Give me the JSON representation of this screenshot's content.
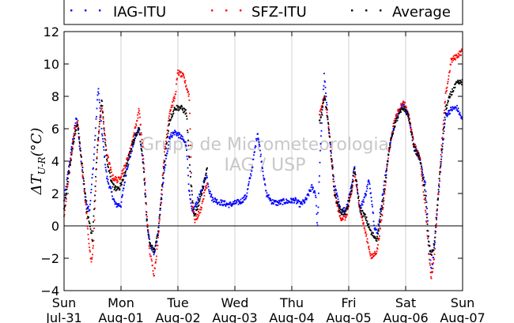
{
  "chart_data": {
    "type": "scatter",
    "title": "",
    "xlabel": "",
    "ylabel": "ΔT_{U-R}(°C)",
    "ylim": [
      -4,
      12
    ],
    "xlim": [
      0,
      7
    ],
    "yticks": [
      -4,
      -2,
      0,
      2,
      4,
      6,
      8,
      10,
      12
    ],
    "x_tick_positions": [
      0,
      1,
      2,
      3,
      4,
      5,
      6,
      7
    ],
    "x_tick_labels": [
      [
        "Sun",
        "Jul-31"
      ],
      [
        "Mon",
        "Aug-01"
      ],
      [
        "Tue",
        "Aug-02"
      ],
      [
        "Wed",
        "Aug-03"
      ],
      [
        "Thu",
        "Aug-04"
      ],
      [
        "Fri",
        "Aug-05"
      ],
      [
        "Sat",
        "Aug-06"
      ],
      [
        "Sun",
        "Aug-07"
      ]
    ],
    "grid": "vertical",
    "zero_line": true,
    "legend_placement": "top",
    "watermark": [
      "Grupo de Micrometeorologia",
      "IAG / USP"
    ],
    "series": [
      {
        "name": "IAG-ITU",
        "color": "#0000ff",
        "gaps": [],
        "keypoints": [
          [
            0.0,
            1.5
          ],
          [
            0.08,
            3.5
          ],
          [
            0.15,
            5.2
          ],
          [
            0.22,
            6.8
          ],
          [
            0.3,
            4.0
          ],
          [
            0.38,
            1.5
          ],
          [
            0.45,
            1.0
          ],
          [
            0.52,
            4.0
          ],
          [
            0.6,
            8.6
          ],
          [
            0.66,
            6.0
          ],
          [
            0.75,
            3.0
          ],
          [
            0.9,
            1.3
          ],
          [
            1.0,
            1.3
          ],
          [
            1.1,
            3.5
          ],
          [
            1.25,
            5.5
          ],
          [
            1.32,
            6.0
          ],
          [
            1.4,
            3.5
          ],
          [
            1.45,
            0.5
          ],
          [
            1.5,
            -1.0
          ],
          [
            1.58,
            -1.8
          ],
          [
            1.65,
            -0.5
          ],
          [
            1.75,
            3.0
          ],
          [
            1.85,
            5.5
          ],
          [
            1.95,
            5.8
          ],
          [
            2.05,
            5.5
          ],
          [
            2.15,
            5.0
          ],
          [
            2.2,
            2.0
          ],
          [
            2.25,
            0.8
          ],
          [
            2.3,
            1.2
          ],
          [
            2.4,
            2.0
          ],
          [
            2.5,
            3.2
          ],
          [
            2.55,
            2.2
          ],
          [
            2.6,
            1.7
          ],
          [
            2.7,
            1.5
          ],
          [
            2.8,
            1.4
          ],
          [
            2.9,
            1.3
          ],
          [
            3.0,
            1.4
          ],
          [
            3.1,
            1.5
          ],
          [
            3.2,
            1.8
          ],
          [
            3.3,
            3.5
          ],
          [
            3.4,
            5.8
          ],
          [
            3.45,
            4.5
          ],
          [
            3.55,
            2.0
          ],
          [
            3.65,
            1.5
          ],
          [
            3.75,
            1.4
          ],
          [
            3.85,
            1.5
          ],
          [
            3.95,
            1.5
          ],
          [
            4.05,
            1.6
          ],
          [
            4.15,
            1.3
          ],
          [
            4.25,
            1.6
          ],
          [
            4.35,
            2.4
          ],
          [
            4.42,
            2.0
          ],
          [
            4.45,
            -0.1
          ],
          [
            4.5,
            4.5
          ],
          [
            4.57,
            9.3
          ],
          [
            4.65,
            6.0
          ],
          [
            4.75,
            2.5
          ],
          [
            4.85,
            1.0
          ],
          [
            4.95,
            1.0
          ],
          [
            5.05,
            2.5
          ],
          [
            5.1,
            3.6
          ],
          [
            5.2,
            1.0
          ],
          [
            5.3,
            2.0
          ],
          [
            5.35,
            2.8
          ],
          [
            5.4,
            1.8
          ],
          [
            5.45,
            0.0
          ],
          [
            5.5,
            -0.5
          ],
          [
            5.6,
            2.0
          ],
          [
            5.7,
            4.5
          ],
          [
            5.75,
            5.5
          ],
          [
            5.85,
            6.8
          ],
          [
            5.95,
            7.5
          ],
          [
            6.05,
            6.8
          ],
          [
            6.15,
            5.0
          ],
          [
            6.25,
            4.0
          ],
          [
            6.35,
            2.5
          ],
          [
            6.4,
            -0.5
          ],
          [
            6.45,
            -2.8
          ],
          [
            6.5,
            -1.5
          ],
          [
            6.6,
            3.0
          ],
          [
            6.7,
            6.8
          ],
          [
            6.8,
            7.2
          ],
          [
            6.9,
            7.3
          ],
          [
            7.0,
            6.5
          ]
        ]
      },
      {
        "name": "SFZ-ITU",
        "color": "#ff0000",
        "gaps": [
          [
            2.52,
            4.48
          ]
        ],
        "keypoints": [
          [
            0.0,
            0.5
          ],
          [
            0.08,
            3.0
          ],
          [
            0.18,
            5.8
          ],
          [
            0.24,
            6.5
          ],
          [
            0.32,
            3.5
          ],
          [
            0.4,
            0.5
          ],
          [
            0.45,
            -1.5
          ],
          [
            0.48,
            -2.4
          ],
          [
            0.52,
            -1.0
          ],
          [
            0.58,
            4.5
          ],
          [
            0.66,
            7.5
          ],
          [
            0.75,
            4.5
          ],
          [
            0.85,
            3.0
          ],
          [
            0.95,
            2.8
          ],
          [
            1.05,
            3.5
          ],
          [
            1.15,
            4.5
          ],
          [
            1.25,
            6.0
          ],
          [
            1.32,
            7.2
          ],
          [
            1.4,
            4.0
          ],
          [
            1.45,
            1.0
          ],
          [
            1.5,
            -1.5
          ],
          [
            1.58,
            -3.0
          ],
          [
            1.65,
            -1.0
          ],
          [
            1.75,
            4.0
          ],
          [
            1.85,
            7.0
          ],
          [
            1.95,
            8.0
          ],
          [
            2.0,
            9.5
          ],
          [
            2.1,
            9.2
          ],
          [
            2.2,
            8.0
          ],
          [
            2.25,
            1.5
          ],
          [
            2.3,
            0.3
          ],
          [
            2.4,
            1.0
          ],
          [
            2.5,
            2.5
          ],
          [
            4.5,
            7.0
          ],
          [
            4.58,
            8.0
          ],
          [
            4.65,
            6.0
          ],
          [
            4.75,
            2.0
          ],
          [
            4.85,
            0.5
          ],
          [
            4.95,
            0.5
          ],
          [
            5.05,
            2.0
          ],
          [
            5.1,
            3.3
          ],
          [
            5.2,
            1.0
          ],
          [
            5.3,
            -0.5
          ],
          [
            5.4,
            -2.0
          ],
          [
            5.5,
            -1.5
          ],
          [
            5.6,
            1.0
          ],
          [
            5.7,
            4.5
          ],
          [
            5.8,
            6.5
          ],
          [
            5.9,
            7.3
          ],
          [
            5.97,
            7.6
          ],
          [
            6.05,
            6.8
          ],
          [
            6.15,
            5.0
          ],
          [
            6.25,
            4.2
          ],
          [
            6.35,
            1.0
          ],
          [
            6.4,
            -1.5
          ],
          [
            6.45,
            -3.2
          ],
          [
            6.5,
            -2.0
          ],
          [
            6.6,
            3.5
          ],
          [
            6.7,
            8.0
          ],
          [
            6.8,
            10.2
          ],
          [
            6.9,
            10.5
          ],
          [
            7.0,
            10.8
          ]
        ]
      },
      {
        "name": "Average",
        "color": "#000000",
        "gaps": [
          [
            2.52,
            4.48
          ]
        ],
        "keypoints": [
          [
            0.0,
            1.0
          ],
          [
            0.08,
            3.2
          ],
          [
            0.18,
            5.5
          ],
          [
            0.24,
            6.3
          ],
          [
            0.32,
            3.8
          ],
          [
            0.4,
            1.0
          ],
          [
            0.45,
            0.0
          ],
          [
            0.5,
            -0.8
          ],
          [
            0.58,
            4.5
          ],
          [
            0.66,
            7.9
          ],
          [
            0.75,
            4.0
          ],
          [
            0.85,
            2.5
          ],
          [
            0.95,
            2.2
          ],
          [
            1.05,
            3.0
          ],
          [
            1.15,
            4.5
          ],
          [
            1.25,
            5.5
          ],
          [
            1.32,
            6.0
          ],
          [
            1.4,
            3.5
          ],
          [
            1.45,
            0.5
          ],
          [
            1.5,
            -1.0
          ],
          [
            1.58,
            -1.6
          ],
          [
            1.65,
            -0.5
          ],
          [
            1.75,
            3.5
          ],
          [
            1.85,
            6.5
          ],
          [
            1.95,
            7.3
          ],
          [
            2.05,
            7.3
          ],
          [
            2.15,
            7.0
          ],
          [
            2.22,
            3.0
          ],
          [
            2.28,
            0.6
          ],
          [
            2.35,
            1.2
          ],
          [
            2.45,
            2.5
          ],
          [
            2.5,
            3.4
          ],
          [
            4.5,
            6.5
          ],
          [
            4.58,
            8.0
          ],
          [
            4.65,
            6.0
          ],
          [
            4.75,
            2.0
          ],
          [
            4.85,
            0.9
          ],
          [
            4.95,
            0.8
          ],
          [
            5.05,
            2.2
          ],
          [
            5.1,
            3.6
          ],
          [
            5.2,
            1.0
          ],
          [
            5.3,
            0.5
          ],
          [
            5.4,
            -0.5
          ],
          [
            5.5,
            -0.8
          ],
          [
            5.6,
            1.5
          ],
          [
            5.7,
            4.5
          ],
          [
            5.8,
            6.2
          ],
          [
            5.9,
            7.0
          ],
          [
            5.97,
            7.3
          ],
          [
            6.05,
            6.8
          ],
          [
            6.15,
            4.8
          ],
          [
            6.25,
            4.2
          ],
          [
            6.35,
            1.8
          ],
          [
            6.4,
            -1.0
          ],
          [
            6.45,
            -1.8
          ],
          [
            6.5,
            -1.2
          ],
          [
            6.6,
            3.2
          ],
          [
            6.7,
            7.2
          ],
          [
            6.8,
            8.2
          ],
          [
            6.9,
            8.8
          ],
          [
            7.0,
            8.9
          ]
        ]
      }
    ]
  }
}
